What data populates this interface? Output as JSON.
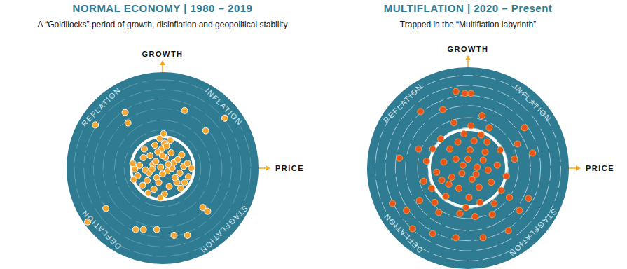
{
  "chart_data": [
    {
      "type": "scatter",
      "title": "NORMAL ECONOMY | 1980 – 2019",
      "subtitle": "A “Goldilocks” period of growth, disinflation and geopolitical stability",
      "x_label": "PRICE",
      "y_label": "GROWTH",
      "annotations": {
        "top_left": "REFLATION",
        "top_right": "INFLATION",
        "bottom_right": "STAGFLATION",
        "bottom_left": "DEFLATION"
      },
      "xlim": [
        -10,
        10
      ],
      "ylim": [
        -10,
        10
      ],
      "tick_labels": false,
      "grid": false,
      "marker": "circle",
      "color": "#f7a832",
      "x": [
        -0.2,
        0.5,
        -1.0,
        1.2,
        -1.8,
        0.3,
        -0.6,
        1.8,
        -2.4,
        0.9,
        -1.3,
        2.2,
        -0.1,
        0.2,
        -0.3,
        0.1,
        0.4,
        -0.5,
        -2.9,
        -3.1,
        2.7,
        1.5,
        -1.6,
        0.7,
        -0.9,
        0.2,
        -2.1,
        2.0,
        -2.0,
        1.0,
        -0.7,
        0.0,
        -1.4,
        1.6,
        2.6,
        -2.6,
        0.6,
        -0.4,
        1.3,
        -1.1,
        0.0,
        -0.8,
        0.8,
        -1.9,
        1.9,
        -1.5,
        2.3,
        -3.0,
        3.0,
        -0.2,
        -3.9,
        2.3,
        -3.6,
        4.5,
        -7.0,
        -5.9,
        4.2,
        4.7,
        -2.8,
        -2.0,
        -0.6,
        1.2,
        2.6,
        -7.8,
        6.5
      ],
      "values": [
        0.1,
        -0.3,
        0.4,
        0.6,
        -0.2,
        1.1,
        -1.0,
        -0.5,
        0.3,
        1.6,
        1.3,
        0.2,
        2.0,
        2.6,
        3.1,
        3.6,
        2.3,
        1.7,
        -0.1,
        0.5,
        -0.9,
        -1.5,
        -1.3,
        -1.9,
        -2.2,
        -2.7,
        -1.8,
        1.4,
        1.1,
        0.0,
        0.7,
        -0.6,
        -0.5,
        0.9,
        0.5,
        -0.8,
        0.4,
        -1.5,
        -1.0,
        -0.1,
        1.3,
        2.4,
        2.9,
        2.0,
        -2.1,
        -2.6,
        -1.5,
        -1.2,
        0.0,
        -3.1,
        5.8,
        6.0,
        4.7,
        3.9,
        4.5,
        -4.2,
        -4.1,
        -4.5,
        -6.4,
        -6.4,
        -6.4,
        -7.0,
        -7.0,
        -5.6,
        5.2
      ]
    },
    {
      "type": "scatter",
      "title": "MULTIFLATION | 2020 – Present",
      "subtitle": "Trapped in the “Multiflation labyrinth”",
      "x_label": "PRICE",
      "y_label": "GROWTH",
      "annotations": {
        "top_left": "REFLATION",
        "top_right": "INFLATION",
        "bottom_right": "STAGFLATION",
        "bottom_left": "DEFLATION"
      },
      "xlim": [
        -10,
        10
      ],
      "ylim": [
        -10,
        10
      ],
      "tick_labels": false,
      "grid": false,
      "marker": "circle",
      "color": "#e8541c",
      "x": [
        -0.5,
        0.8,
        -1.6,
        1.5,
        -2.4,
        0.2,
        -0.9,
        2.3,
        -3.1,
        0.6,
        -1.8,
        2.9,
        0.1,
        1.2,
        -2.2,
        3.3,
        -3.6,
        -0.4,
        1.9,
        -2.7,
        0.4,
        -1.2,
        1.1,
        -0.2,
        2.6,
        -3.3,
        3.8,
        -4.1,
        0.9,
        -0.6,
        1.7,
        -1.9,
        2.0,
        -2.6,
        0.0,
        -1.0,
        1.3,
        -4.4,
        4.1,
        -0.8,
        0.7,
        -2.9,
        2.4,
        3.2,
        -3.5,
        0.3,
        -1.4,
        2.1,
        -4.8,
        4.6,
        -1.2,
        -0.3,
        0.3,
        -4.7,
        1.4,
        -4.9,
        4.9,
        6.4,
        -7.5,
        -6.1,
        5.1,
        1.5,
        -1.2,
        4.0,
        -5.5,
        -3.5,
        6.0,
        -6.8,
        5.6,
        -2.5
      ],
      "values": [
        0.3,
        -0.6,
        -0.9,
        0.8,
        0.6,
        1.8,
        -2.0,
        -1.4,
        -0.4,
        2.7,
        1.9,
        0.3,
        -2.9,
        -3.4,
        -2.8,
        -2.2,
        -2.0,
        3.4,
        2.6,
        2.9,
        -1.1,
        0.9,
        -1.9,
        -3.9,
        -3.5,
        -3.4,
        -0.8,
        0.7,
        0.1,
        -0.5,
        1.6,
        -1.6,
        -0.2,
        -1.2,
        0.9,
        2.6,
        3.3,
        -1.3,
        -2.9,
        -4.5,
        -4.8,
        -4.4,
        -4.6,
        1.8,
        1.9,
        4.2,
        4.5,
        4.0,
        -3.2,
        0.9,
        7.6,
        7.4,
        7.4,
        5.6,
        5.2,
        1.9,
        2.4,
        1.5,
        -3.5,
        -4.2,
        -4.2,
        -6.9,
        -6.9,
        -6.2,
        -6.0,
        -6.5,
        -3.0,
        1.0,
        4.0,
        5.8
      ]
    }
  ]
}
